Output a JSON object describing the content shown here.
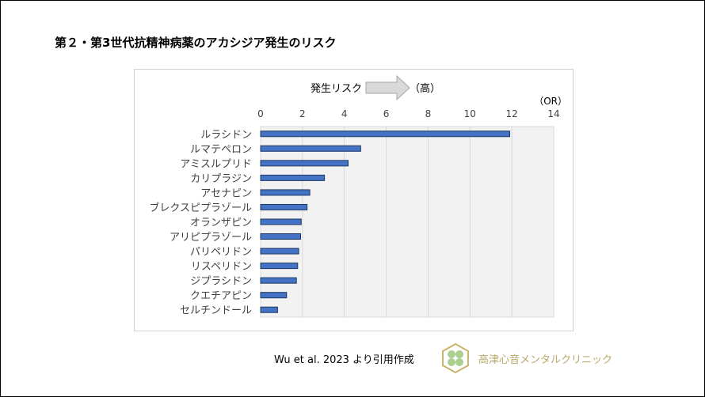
{
  "title": "第２・第3世代抗精神病薬のアカシジア発生のリスク",
  "source": "Wu et al. 2023 より引用作成",
  "logo_text": "高津心音メンタルクリニック",
  "colors": {
    "bar": "#4472c4",
    "bar_border": "#1f3864",
    "plot_bg": "#f2f2f2",
    "grid": "#d9d9d9",
    "logo": "#b9a968"
  },
  "chart_data": {
    "type": "bar",
    "orientation": "horizontal",
    "title": "第２・第3世代抗精神病薬のアカシジア発生のリスク",
    "risk_label": "発生リスク",
    "risk_high_label": "（高）",
    "xlabel": "（OR）",
    "ylabel": "",
    "xlim": [
      0,
      14
    ],
    "xticks": [
      "0",
      "2",
      "4",
      "6",
      "8",
      "10",
      "12",
      "14"
    ],
    "grid": true,
    "categories": [
      "ルラシドン",
      "ルマテペロン",
      "アミスルプリド",
      "カリプラジン",
      "アセナピン",
      "ブレクスピプラゾール",
      "オランザピン",
      "アリピプラゾール",
      "パリペリドン",
      "リスペリドン",
      "ジプラシドン",
      "クエチアピン",
      "セルチンドール"
    ],
    "values": [
      11.9,
      4.78,
      4.18,
      3.05,
      2.35,
      2.22,
      1.94,
      1.91,
      1.82,
      1.77,
      1.71,
      1.24,
      0.81
    ]
  }
}
